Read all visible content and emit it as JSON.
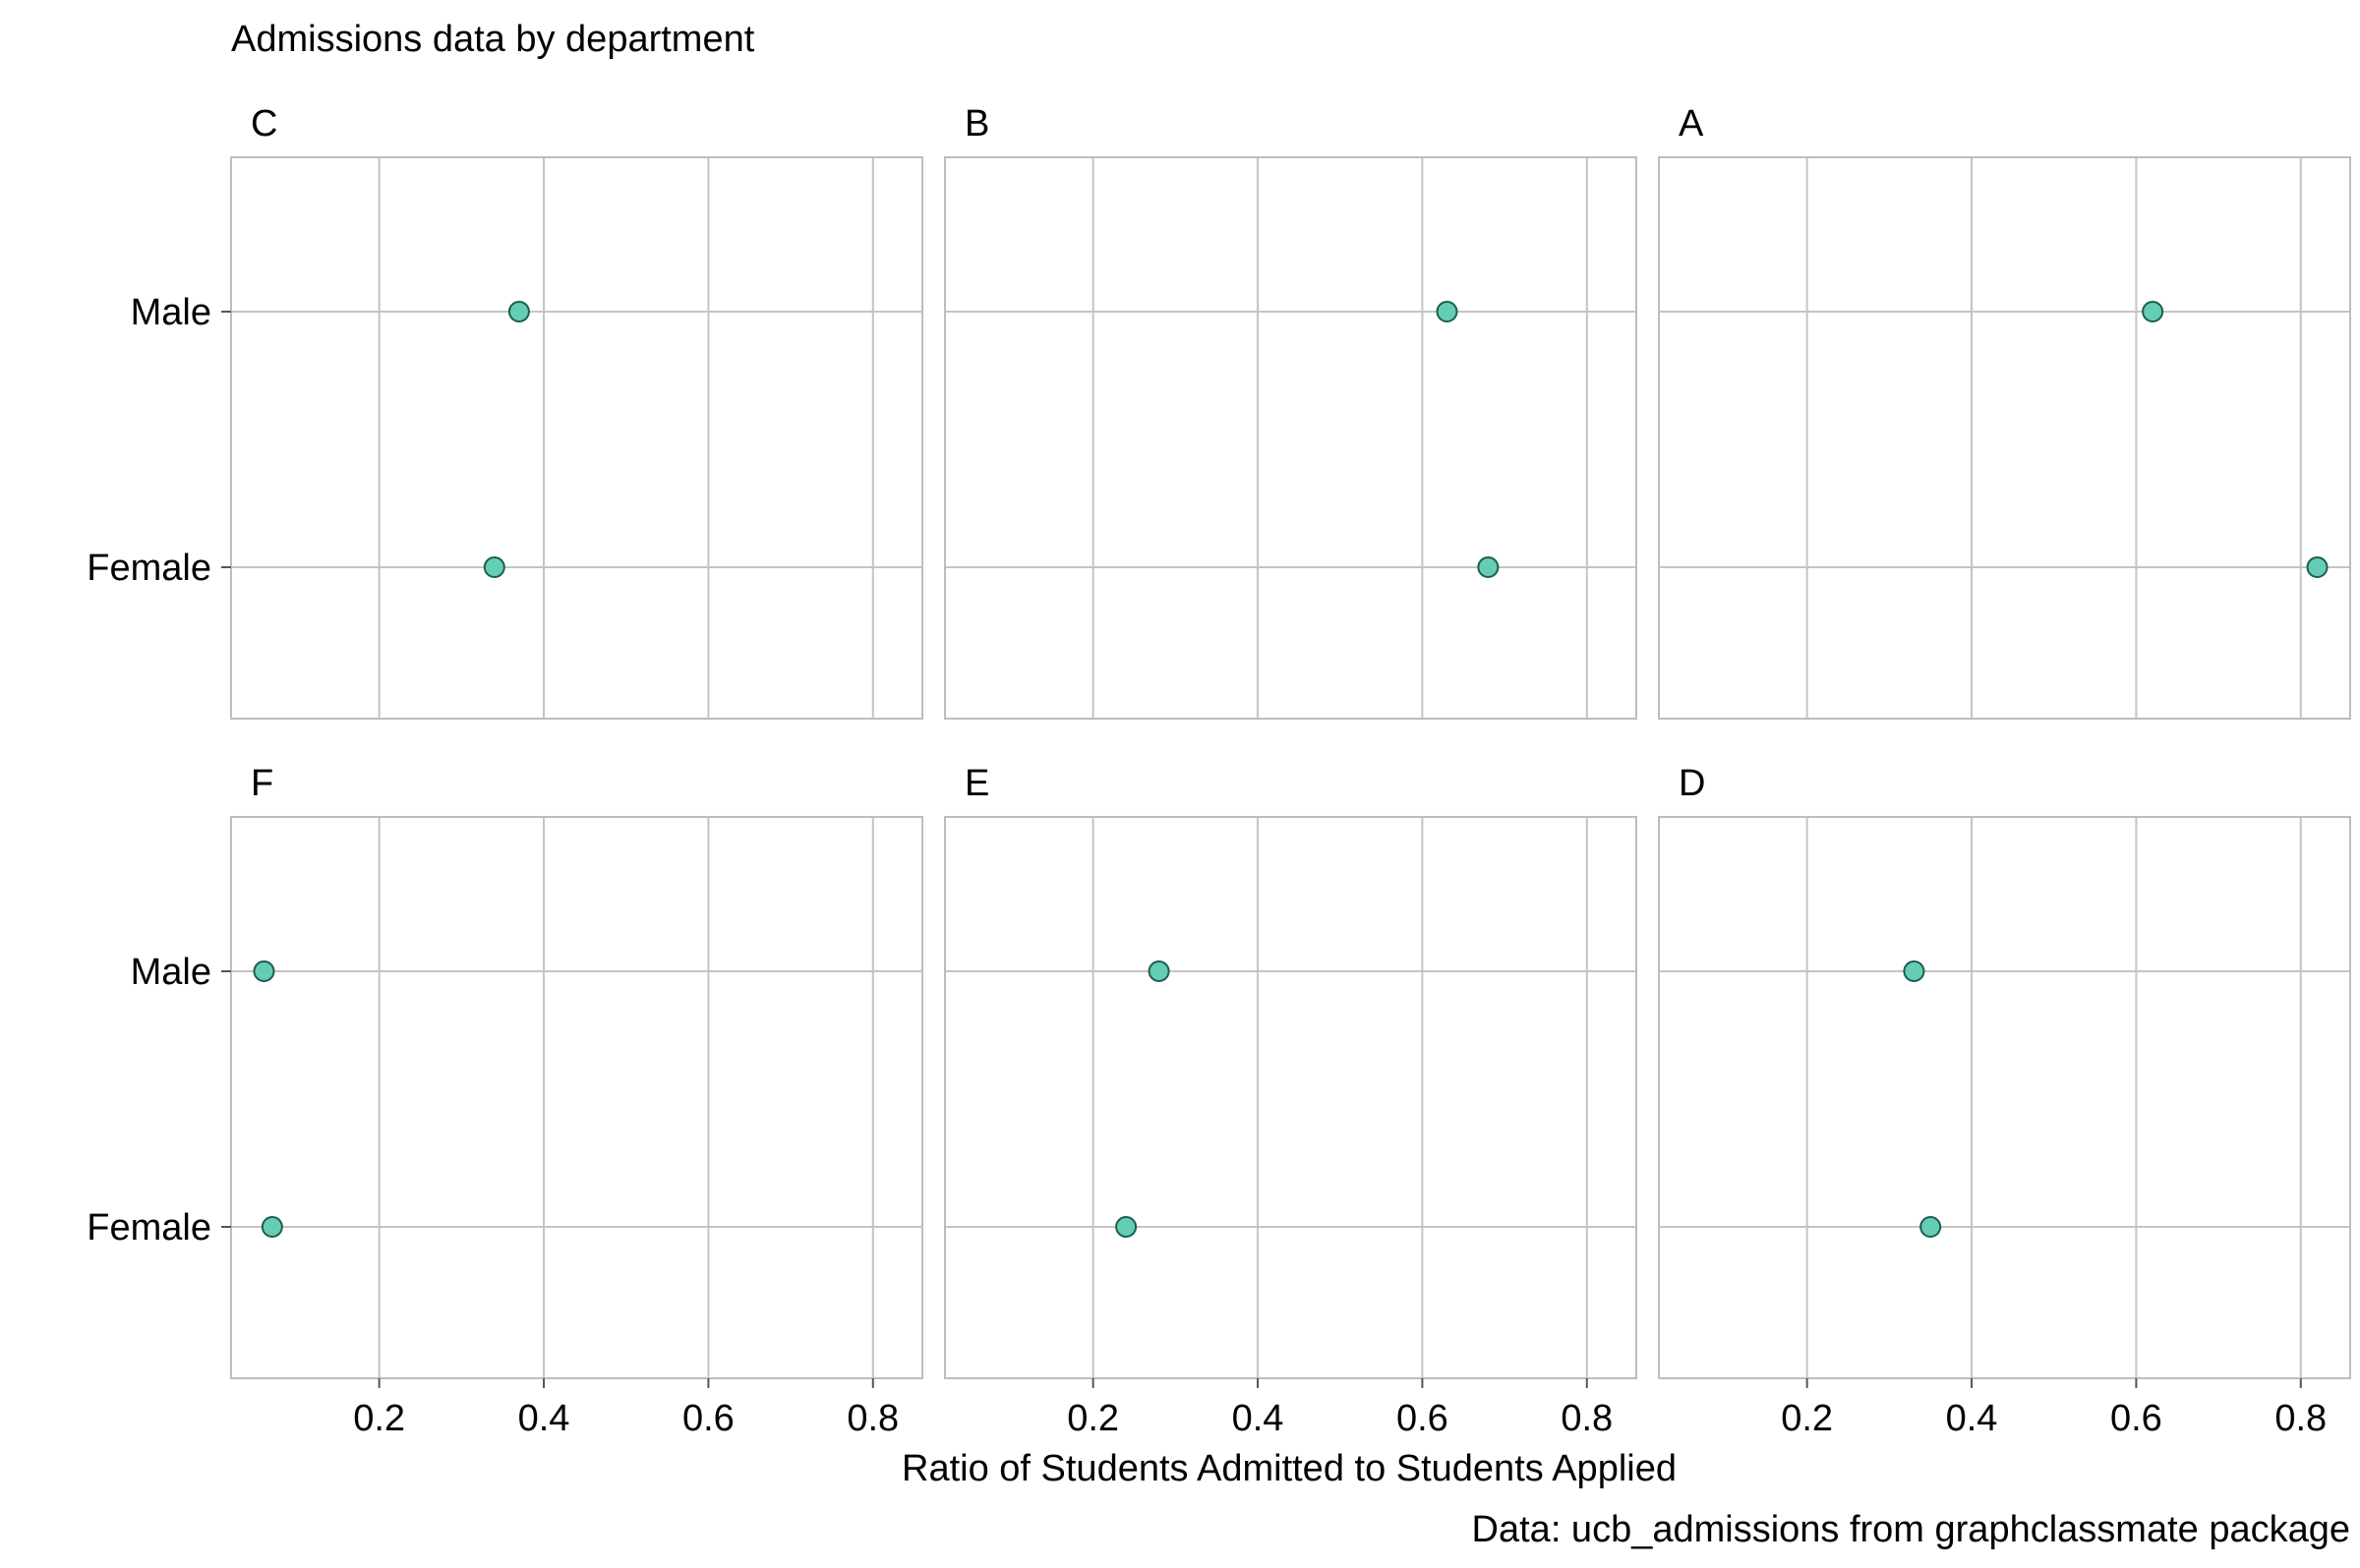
{
  "chart_data": {
    "type": "scatter",
    "title": "Admissions data by department",
    "xlabel": "Ratio of Students Admitted to Students Applied",
    "ylabel": "",
    "caption": "Data: ucb_admissions from graphclassmate package",
    "categories": [
      "Male",
      "Female"
    ],
    "x_ticks": [
      "0.2",
      "0.4",
      "0.6",
      "0.8"
    ],
    "xlim": [
      0.02,
      0.86
    ],
    "grid": true,
    "point_color": "#66cdb5",
    "point_edge_color": "#1b5e4f",
    "panels": [
      {
        "name": "C",
        "values": {
          "Male": 0.37,
          "Female": 0.34
        }
      },
      {
        "name": "B",
        "values": {
          "Male": 0.63,
          "Female": 0.68
        }
      },
      {
        "name": "A",
        "values": {
          "Male": 0.62,
          "Female": 0.82
        }
      },
      {
        "name": "F",
        "values": {
          "Male": 0.06,
          "Female": 0.07
        }
      },
      {
        "name": "E",
        "values": {
          "Male": 0.28,
          "Female": 0.24
        }
      },
      {
        "name": "D",
        "values": {
          "Male": 0.33,
          "Female": 0.35
        }
      }
    ]
  }
}
